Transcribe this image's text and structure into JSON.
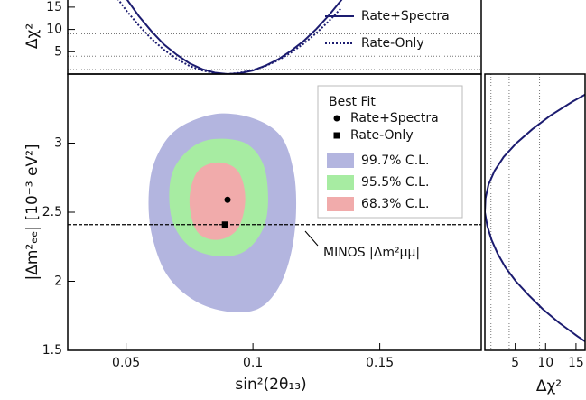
{
  "chart_data": [
    {
      "type": "contour",
      "xlabel": "sin²(2θ₁₃)",
      "ylabel": "|Δm²ₑₑ| [10⁻³ eV²]",
      "xlim": [
        0.027,
        0.19
      ],
      "xticks": [
        0.05,
        0.1,
        0.15
      ],
      "ylim": [
        1.5,
        3.5
      ],
      "yticks": [
        1.5,
        2,
        2.5,
        3
      ],
      "legend_title": "Best Fit",
      "points": [
        {
          "name": "Rate+Spectra",
          "marker": "circle",
          "x": 0.09,
          "y": 2.59
        },
        {
          "name": "Rate-Only",
          "marker": "square",
          "x": 0.089,
          "y": 2.41
        }
      ],
      "regions": [
        {
          "name": "99.7% C.L.",
          "color": "#b3b5df",
          "x": [
            0.085,
            0.1,
            0.111,
            0.116,
            0.117,
            0.115,
            0.11,
            0.102,
            0.09,
            0.077,
            0.066,
            0.06,
            0.059,
            0.062,
            0.07
          ],
          "y": [
            3.21,
            3.18,
            3.05,
            2.8,
            2.5,
            2.2,
            1.95,
            1.8,
            1.78,
            1.86,
            2.05,
            2.35,
            2.65,
            2.9,
            3.1
          ]
        },
        {
          "name": "95.5% C.L.",
          "color": "#a7eca2",
          "x": [
            0.085,
            0.097,
            0.104,
            0.106,
            0.104,
            0.097,
            0.087,
            0.076,
            0.069,
            0.067,
            0.069,
            0.076
          ],
          "y": [
            3.03,
            3.0,
            2.85,
            2.6,
            2.38,
            2.22,
            2.18,
            2.24,
            2.4,
            2.62,
            2.82,
            2.97
          ]
        },
        {
          "name": "68.3% C.L.",
          "color": "#f1abab",
          "x": [
            0.086,
            0.094,
            0.097,
            0.094,
            0.086,
            0.078,
            0.075,
            0.078
          ],
          "y": [
            2.86,
            2.8,
            2.6,
            2.38,
            2.3,
            2.36,
            2.58,
            2.79
          ]
        }
      ],
      "reference_line": {
        "label": "MINOS |Δm²μμ|",
        "y": 2.41
      }
    },
    {
      "type": "line",
      "ylabel": "Δχ²",
      "xlim": [
        0.027,
        0.19
      ],
      "ylim": [
        0,
        17
      ],
      "yticks": [
        5,
        10,
        15
      ],
      "sigma_lines": [
        1,
        4,
        9
      ],
      "x": [
        0.045,
        0.05,
        0.055,
        0.06,
        0.065,
        0.07,
        0.075,
        0.08,
        0.085,
        0.09,
        0.095,
        0.1,
        0.105,
        0.11,
        0.115,
        0.12,
        0.125,
        0.13,
        0.135
      ],
      "series": [
        {
          "name": "Rate+Spectra",
          "color": "#1c1c70",
          "dash": "solid",
          "values": [
            21.5,
            17.0,
            13.0,
            9.6,
            6.6,
            4.3,
            2.4,
            1.1,
            0.3,
            0.0,
            0.2,
            0.8,
            1.9,
            3.3,
            5.2,
            7.4,
            10.1,
            13.2,
            16.7
          ]
        },
        {
          "name": "Rate-Only",
          "color": "#1c1c70",
          "dash": "dotted",
          "values": [
            18.2,
            14.3,
            10.9,
            7.9,
            5.4,
            3.4,
            1.8,
            0.8,
            0.2,
            0.0,
            0.3,
            0.9,
            1.8,
            3.1,
            4.8,
            6.8,
            9.2,
            11.9,
            14.9
          ]
        }
      ]
    },
    {
      "type": "line",
      "orientation": "horizontal",
      "xlabel": "Δχ²",
      "xlim": [
        0,
        16.5
      ],
      "xticks": [
        5,
        10,
        15
      ],
      "ylim": [
        1.5,
        3.5
      ],
      "sigma_lines": [
        1,
        4,
        9
      ],
      "y": [
        1.5,
        1.6,
        1.7,
        1.8,
        1.9,
        2.0,
        2.1,
        2.2,
        2.3,
        2.4,
        2.5,
        2.6,
        2.7,
        2.8,
        2.9,
        3.0,
        3.1,
        3.2,
        3.3,
        3.4
      ],
      "series": [
        {
          "color": "#1c1c70",
          "dash": "solid",
          "values": [
            18.7,
            15.3,
            12.2,
            9.5,
            7.2,
            5.1,
            3.4,
            2.1,
            1.1,
            0.4,
            0.0,
            0.1,
            0.6,
            1.6,
            3.1,
            5.2,
            7.8,
            10.8,
            14.4,
            18.5
          ]
        }
      ]
    }
  ]
}
